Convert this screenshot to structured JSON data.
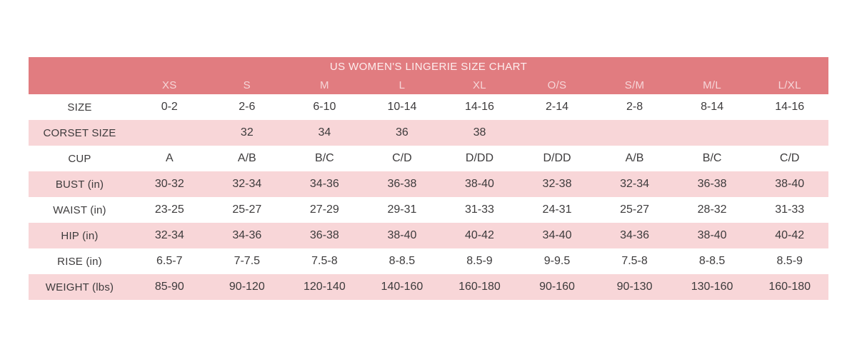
{
  "chart_data": {
    "type": "table",
    "title": "US WOMEN'S LINGERIE SIZE CHART",
    "columns": [
      "",
      "XS",
      "S",
      "M",
      "L",
      "XL",
      "O/S",
      "S/M",
      "M/L",
      "L/XL"
    ],
    "rows": [
      {
        "label": "SIZE",
        "values": [
          "0-2",
          "2-6",
          "6-10",
          "10-14",
          "14-16",
          "2-14",
          "2-8",
          "8-14",
          "14-16"
        ]
      },
      {
        "label": "CORSET SIZE",
        "values": [
          "",
          "32",
          "34",
          "36",
          "38",
          "",
          "",
          "",
          ""
        ]
      },
      {
        "label": "CUP",
        "values": [
          "A",
          "A/B",
          "B/C",
          "C/D",
          "D/DD",
          "D/DD",
          "A/B",
          "B/C",
          "C/D"
        ]
      },
      {
        "label": "BUST (in)",
        "values": [
          "30-32",
          "32-34",
          "34-36",
          "36-38",
          "38-40",
          "32-38",
          "32-34",
          "36-38",
          "38-40"
        ]
      },
      {
        "label": "WAIST (in)",
        "values": [
          "23-25",
          "25-27",
          "27-29",
          "29-31",
          "31-33",
          "24-31",
          "25-27",
          "28-32",
          "31-33"
        ]
      },
      {
        "label": "HIP (in)",
        "values": [
          "32-34",
          "34-36",
          "36-38",
          "38-40",
          "40-42",
          "34-40",
          "34-36",
          "38-40",
          "40-42"
        ]
      },
      {
        "label": "RISE (in)",
        "values": [
          "6.5-7",
          "7-7.5",
          "7.5-8",
          "8-8.5",
          "8.5-9",
          "9-9.5",
          "7.5-8",
          "8-8.5",
          "8.5-9"
        ]
      },
      {
        "label": "WEIGHT (lbs)",
        "values": [
          "85-90",
          "90-120",
          "120-140",
          "140-160",
          "160-180",
          "90-160",
          "90-130",
          "130-160",
          "160-180"
        ]
      }
    ],
    "layout": {
      "grid": false,
      "alternating_row_colors": true,
      "header_position": "top"
    }
  },
  "colors": {
    "header_bg": "#e17c80",
    "title_text": "#fdeeee",
    "column_header_text": "#f6d6d8",
    "row_pink_bg": "#f8d6d8",
    "row_white_bg": "#ffffff",
    "body_text": "#3d3b3c",
    "page_bg": "#ffffff"
  }
}
